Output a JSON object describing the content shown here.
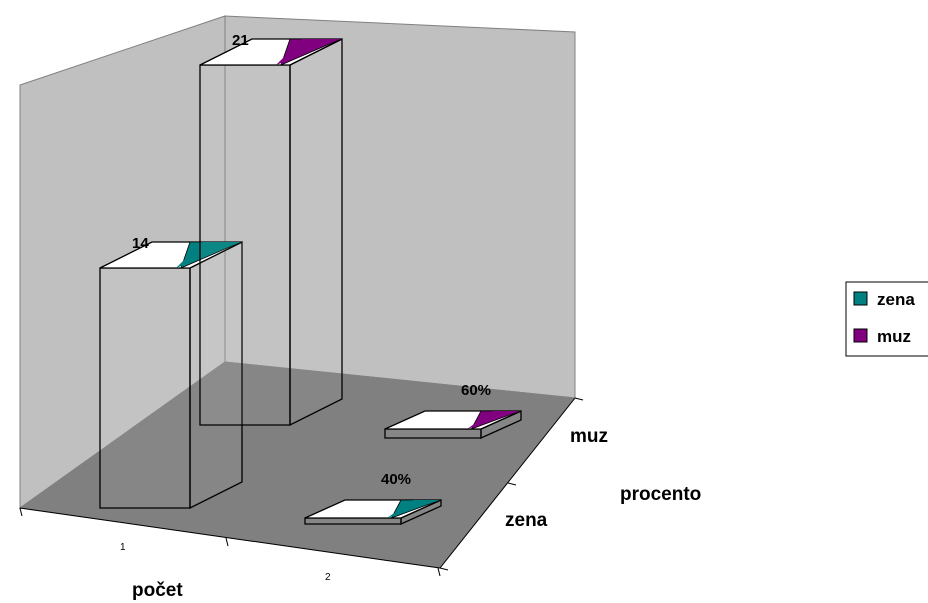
{
  "chart_data": {
    "type": "bar",
    "variant": "3d-column",
    "categories": [
      "1",
      "2"
    ],
    "series": [
      {
        "name": "zena",
        "values": [
          14,
          0.4
        ],
        "labels": [
          "14",
          "40%"
        ],
        "color": "#008080"
      },
      {
        "name": "muz",
        "values": [
          21,
          0.6
        ],
        "labels": [
          "21",
          "60%"
        ],
        "color": "#800080"
      }
    ],
    "axis_titles": {
      "category": "počet",
      "series": "procento"
    },
    "series_axis_labels": [
      "zena",
      "muz"
    ],
    "walls_color": "#c0c0c0",
    "floor_color": "#808080",
    "grid": false,
    "legend_position": "right"
  }
}
